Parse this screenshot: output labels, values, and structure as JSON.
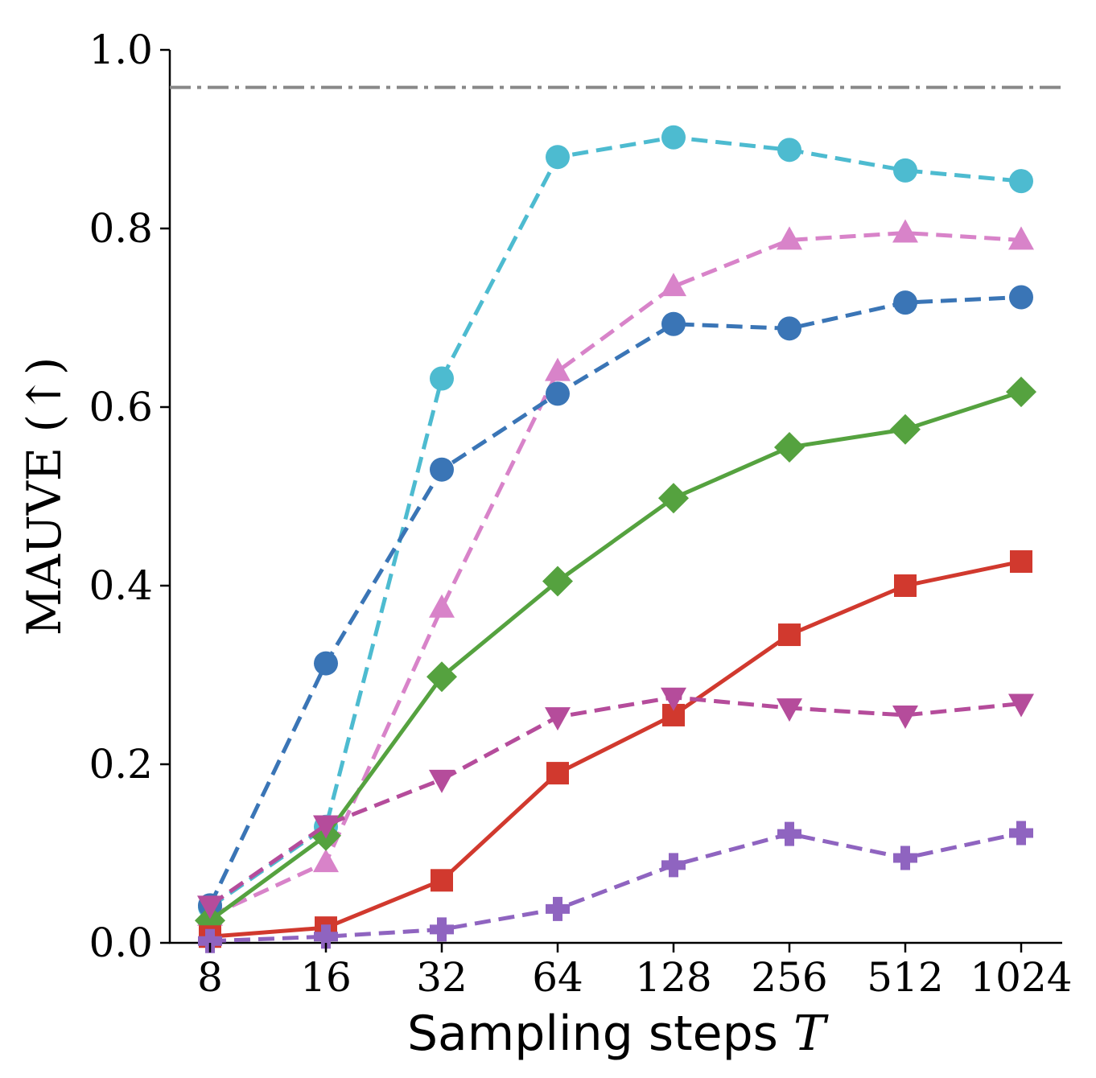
{
  "chart_data": {
    "type": "line",
    "xlabel": "Sampling steps",
    "xlabel_var": "T",
    "ylabel": "MAUVE (↑)",
    "x_scale": "log2",
    "x": [
      8,
      16,
      32,
      64,
      128,
      256,
      512,
      1024
    ],
    "x_tick_labels": [
      "8",
      "16",
      "32",
      "64",
      "128",
      "256",
      "512",
      "1024"
    ],
    "ylim": [
      0.0,
      1.0
    ],
    "y_ticks": [
      0.0,
      0.2,
      0.4,
      0.6,
      0.8,
      1.0
    ],
    "y_tick_labels": [
      "0.0",
      "0.2",
      "0.4",
      "0.6",
      "0.8",
      "1.0"
    ],
    "grid": false,
    "legend": "none",
    "reference_line": {
      "y": 0.958,
      "style": "dashdot",
      "color": "#888888"
    },
    "series": [
      {
        "marker": "circle",
        "dash": "dashed",
        "color": "#4DBBD0",
        "values": [
          0.04,
          0.13,
          0.632,
          0.88,
          0.902,
          0.888,
          0.865,
          0.853
        ]
      },
      {
        "marker": "triangle-up",
        "dash": "dashed",
        "color": "#D883C9",
        "values": [
          0.03,
          0.09,
          0.375,
          0.64,
          0.735,
          0.787,
          0.795,
          0.787
        ]
      },
      {
        "marker": "circle",
        "dash": "dashed",
        "color": "#3A75B6",
        "values": [
          0.042,
          0.313,
          0.53,
          0.615,
          0.693,
          0.688,
          0.717,
          0.723
        ]
      },
      {
        "marker": "diamond",
        "dash": "solid",
        "color": "#55A23F",
        "values": [
          0.025,
          0.12,
          0.298,
          0.405,
          0.498,
          0.555,
          0.575,
          0.617
        ]
      },
      {
        "marker": "square",
        "dash": "solid",
        "color": "#D1392E",
        "values": [
          0.007,
          0.017,
          0.07,
          0.19,
          0.255,
          0.345,
          0.4,
          0.427
        ]
      },
      {
        "marker": "triangle-down",
        "dash": "dashed",
        "color": "#B54C9B",
        "values": [
          0.042,
          0.132,
          0.183,
          0.253,
          0.275,
          0.263,
          0.255,
          0.268
        ]
      },
      {
        "marker": "plus",
        "dash": "dashed",
        "color": "#8F64C0",
        "values": [
          0.002,
          0.007,
          0.015,
          0.038,
          0.087,
          0.122,
          0.095,
          0.123
        ]
      }
    ]
  }
}
